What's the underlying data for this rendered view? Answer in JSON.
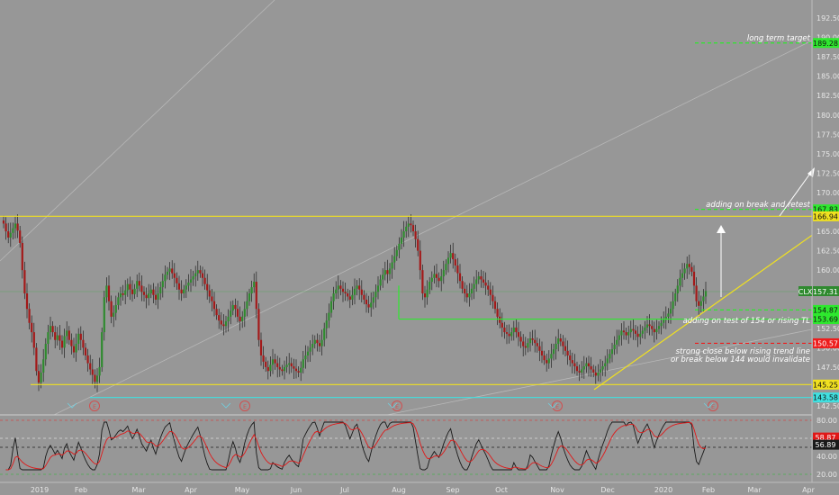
{
  "colors": {
    "background": "#979797",
    "axis_text": "#e6e6e6",
    "up_candle": "#2f8a2f",
    "down_candle": "#a31919",
    "wick": "#222222",
    "yellow": "#f0e020",
    "green": "#2ee82e",
    "red": "#ee1c1c",
    "cyan": "#40e0e0",
    "white": "#ffffff",
    "rsi_black": "#1a1a1a",
    "rsi_red": "#e01818"
  },
  "chart_data": [
    {
      "type": "line",
      "name": "candles",
      "symbol": "CLX",
      "last_price": "157.31",
      "ylim": [
        141.0,
        194.0
      ],
      "y_ticks": [
        "192.50",
        "190.00",
        "187.50",
        "185.00",
        "182.50",
        "180.00",
        "177.50",
        "175.00",
        "172.50",
        "170.00",
        "167.50",
        "165.00",
        "162.50",
        "160.00",
        "157.50",
        "155.00",
        "152.50",
        "150.00",
        "147.50",
        "145.00",
        "142.50"
      ],
      "x_ticks": [
        "2019",
        "Feb",
        "Mar",
        "Apr",
        "May",
        "Jun",
        "Jul",
        "Aug",
        "Sep",
        "Oct",
        "Nov",
        "Dec",
        "2020",
        "Feb",
        "Mar",
        "Apr"
      ],
      "closes": [
        166.0,
        165.0,
        164.2,
        164.8,
        165.4,
        166.0,
        165.1,
        163.5,
        160.0,
        157.0,
        155.0,
        153.2,
        152.0,
        150.0,
        147.0,
        145.5,
        146.8,
        148.5,
        150.5,
        152.0,
        152.8,
        152.0,
        151.0,
        151.6,
        150.9,
        150.0,
        151.5,
        152.2,
        151.0,
        150.2,
        149.4,
        150.5,
        151.8,
        151.0,
        150.0,
        149.0,
        148.0,
        147.2,
        146.5,
        145.6,
        146.4,
        147.5,
        152.0,
        156.5,
        158.0,
        156.0,
        154.0,
        154.5,
        155.5,
        156.5,
        157.0,
        156.8,
        157.4,
        158.2,
        157.5,
        156.9,
        157.6,
        158.6,
        158.0,
        157.2,
        156.8,
        156.4,
        157.0,
        157.5,
        156.8,
        156.2,
        157.0,
        157.8,
        158.6,
        159.4,
        159.8,
        160.2,
        159.6,
        159.0,
        158.3,
        157.5,
        157.0,
        157.5,
        158.0,
        158.4,
        158.8,
        159.2,
        159.6,
        160.0,
        159.6,
        159.0,
        158.2,
        157.4,
        156.6,
        156.0,
        155.0,
        154.2,
        153.5,
        153.0,
        152.8,
        153.4,
        154.0,
        154.8,
        155.5,
        155.0,
        154.0,
        153.4,
        154.0,
        155.0,
        156.0,
        157.0,
        157.8,
        158.5,
        155.0,
        151.0,
        149.0,
        148.2,
        147.5,
        147.0,
        147.8,
        148.5,
        148.0,
        147.5,
        147.2,
        147.0,
        147.5,
        147.8,
        148.0,
        147.6,
        147.3,
        147.0,
        146.8,
        147.4,
        148.5,
        149.0,
        149.5,
        150.0,
        150.5,
        151.0,
        150.6,
        150.2,
        151.0,
        152.5,
        153.5,
        154.5,
        156.0,
        157.0,
        157.5,
        158.0,
        157.6,
        157.2,
        157.0,
        156.6,
        156.2,
        156.8,
        157.6,
        158.0,
        157.5,
        156.8,
        156.2,
        155.6,
        155.2,
        155.8,
        156.5,
        157.2,
        158.0,
        158.8,
        159.4,
        160.0,
        159.5,
        160.2,
        161.0,
        161.8,
        162.6,
        163.4,
        164.2,
        165.0,
        165.6,
        166.0,
        165.8,
        165.0,
        164.0,
        162.5,
        160.0,
        157.0,
        156.5,
        157.5,
        158.5,
        159.0,
        159.5,
        159.0,
        158.6,
        159.2,
        160.0,
        160.8,
        161.6,
        162.2,
        161.4,
        160.6,
        159.6,
        158.6,
        157.6,
        157.0,
        156.5,
        157.0,
        157.6,
        158.2,
        158.8,
        159.2,
        158.8,
        158.4,
        158.0,
        157.5,
        156.8,
        156.0,
        155.0,
        154.0,
        153.2,
        152.6,
        152.0,
        151.8,
        151.5,
        152.0,
        152.6,
        152.0,
        151.4,
        150.8,
        150.2,
        150.0,
        150.6,
        151.2,
        151.0,
        150.6,
        150.2,
        149.6,
        149.0,
        148.4,
        148.0,
        148.6,
        149.2,
        149.8,
        150.5,
        151.2,
        150.8,
        150.2,
        149.6,
        149.0,
        148.4,
        148.0,
        147.6,
        147.0,
        146.8,
        147.2,
        147.6,
        148.0,
        147.6,
        147.2,
        146.8,
        146.4,
        146.8,
        147.2,
        147.6,
        148.0,
        148.6,
        149.2,
        149.8,
        150.4,
        151.0,
        151.6,
        152.2,
        152.0,
        151.6,
        152.0,
        152.4,
        152.2,
        151.8,
        151.4,
        151.8,
        152.2,
        152.6,
        153.0,
        152.8,
        152.4,
        152.0,
        152.4,
        152.8,
        153.2,
        153.6,
        154.0,
        154.4,
        155.0,
        156.0,
        157.0,
        158.0,
        159.0,
        159.6,
        160.2,
        160.8,
        160.4,
        159.8,
        158.0,
        156.0,
        155.4,
        156.0,
        156.6,
        157.31
      ]
    },
    {
      "type": "line",
      "name": "oscillator",
      "y_ticks": [
        "80.00",
        "60.00",
        "40.00",
        "20.00"
      ],
      "ylim": [
        15,
        90
      ],
      "value_labels": [
        "58.87",
        "56.89"
      ],
      "ref_levels": [
        80,
        60,
        20
      ]
    }
  ],
  "levels": [
    {
      "value": "189.28",
      "color": "green",
      "style": "dashed"
    },
    {
      "value": "167.83",
      "color": "green",
      "style": "dashed"
    },
    {
      "value": "166.94",
      "color": "yellow",
      "style": "solid"
    },
    {
      "value": "154.87",
      "color": "green",
      "style": "dashed"
    },
    {
      "value": "153.69",
      "color": "green",
      "style": "solid"
    },
    {
      "value": "150.57",
      "color": "red",
      "style": "dashed"
    },
    {
      "value": "145.25",
      "color": "yellow",
      "style": "solid"
    },
    {
      "value": "143.58",
      "color": "cyan",
      "style": "solid"
    }
  ],
  "annotations": {
    "long_term_target": "long term target",
    "adding_on_break": "adding on break and retest",
    "adding_on_test": "adding on test of 154 or rising TL",
    "invalidate_line1": "strong close below rising trend line",
    "invalidate_line2": "or break below 144 would invalidate"
  },
  "event_markers": [
    "E",
    "E",
    "E",
    "E",
    "E"
  ]
}
